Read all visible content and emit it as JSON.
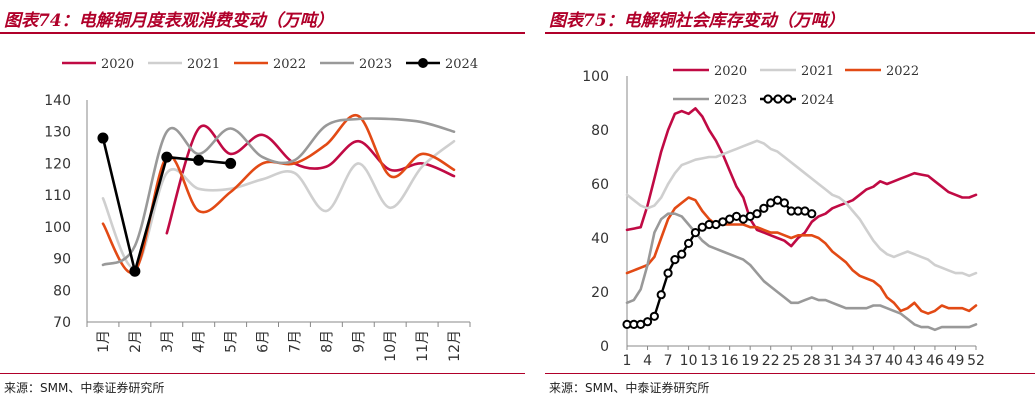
{
  "charts": [
    {
      "title": "图表74：电解铜月度表观消费变动（万吨）",
      "source": "来源：SMM、中泰证券研究所",
      "chart_data": {
        "type": "line",
        "categories": [
          "1月",
          "2月",
          "3月",
          "4月",
          "5月",
          "6月",
          "7月",
          "8月",
          "9月",
          "10月",
          "11月",
          "12月"
        ],
        "ylim": [
          70,
          140
        ],
        "yticks": [
          70,
          80,
          90,
          100,
          110,
          120,
          130,
          140
        ],
        "grid": false,
        "legend": "top",
        "series": [
          {
            "name": "2020",
            "color": "#c00a44",
            "values": [
              null,
              null,
              98,
              131,
              123,
              129,
              120,
              119,
              127,
              118,
              120,
              116
            ],
            "markers": false
          },
          {
            "name": "2021",
            "color": "#cfcfcf",
            "values": [
              109,
              87,
              117,
              112,
              112,
              115,
              117,
              105,
              120,
              106,
              119,
              127
            ],
            "markers": false
          },
          {
            "name": "2022",
            "color": "#e24a15",
            "values": [
              101,
              86,
              122,
              105,
              111,
              120,
              120,
              126,
              135,
              116,
              123,
              118
            ],
            "markers": false
          },
          {
            "name": "2023",
            "color": "#999999",
            "values": [
              88,
              94,
              130,
              123,
              131,
              122,
              121,
              132,
              134,
              134,
              133,
              130
            ],
            "markers": false
          },
          {
            "name": "2024",
            "color": "#000000",
            "values": [
              128,
              86,
              122,
              121,
              120,
              null,
              null,
              null,
              null,
              null,
              null,
              null
            ],
            "markers": true
          }
        ]
      }
    },
    {
      "title": "图表75：电解铜社会库存变动（万吨）",
      "source": "来源：SMM、中泰证券研究所",
      "chart_data": {
        "type": "line",
        "xticks": [
          1,
          4,
          7,
          10,
          13,
          16,
          19,
          22,
          25,
          28,
          31,
          34,
          37,
          40,
          43,
          46,
          49,
          52
        ],
        "xlim": [
          1,
          52
        ],
        "ylim": [
          0,
          100
        ],
        "yticks": [
          0,
          20,
          40,
          60,
          80,
          100
        ],
        "grid": false,
        "legend": "top",
        "series": [
          {
            "name": "2020",
            "color": "#c00a44",
            "markers": false,
            "x": [
              1,
              2,
              3,
              4,
              5,
              6,
              7,
              8,
              9,
              10,
              11,
              12,
              13,
              14,
              15,
              16,
              17,
              18,
              19,
              20,
              21,
              22,
              23,
              24,
              25,
              26,
              27,
              28,
              29,
              30,
              31,
              32,
              33,
              34,
              35,
              36,
              37,
              38,
              39,
              40,
              41,
              42,
              43,
              44,
              45,
              46,
              47,
              48,
              49,
              50,
              51,
              52
            ],
            "y": [
              43,
              43.5,
              44,
              52,
              62,
              72,
              80,
              86,
              87,
              86,
              88,
              85,
              80,
              76,
              71,
              65,
              59,
              55,
              47,
              43,
              42,
              41,
              40,
              39,
              37,
              40,
              42,
              46,
              48,
              49,
              51,
              52,
              53,
              54,
              56,
              58,
              59,
              61,
              60,
              61,
              62,
              63,
              64,
              63.5,
              63,
              61,
              59,
              57,
              56,
              55,
              55,
              56
            ]
          },
          {
            "name": "2021",
            "color": "#cfcfcf",
            "markers": false,
            "x": [
              1,
              2,
              3,
              4,
              5,
              6,
              7,
              8,
              9,
              10,
              11,
              12,
              13,
              14,
              15,
              16,
              17,
              18,
              19,
              20,
              21,
              22,
              23,
              24,
              25,
              26,
              27,
              28,
              29,
              30,
              31,
              32,
              33,
              34,
              35,
              36,
              37,
              38,
              39,
              40,
              41,
              42,
              43,
              44,
              45,
              46,
              47,
              48,
              49,
              50,
              51,
              52
            ],
            "y": [
              56,
              54,
              52,
              51,
              52,
              55,
              60,
              64,
              67,
              68,
              69,
              69.5,
              70,
              70,
              71,
              72,
              73,
              74,
              75,
              76,
              75,
              73,
              72,
              70,
              68,
              66,
              64,
              62,
              60,
              58,
              56,
              55,
              53,
              50,
              47,
              43,
              39,
              36,
              34,
              33,
              34,
              35,
              34,
              33,
              32,
              30,
              29,
              28,
              27,
              27,
              26,
              27
            ]
          },
          {
            "name": "2022",
            "color": "#e24a15",
            "markers": false,
            "x": [
              1,
              2,
              3,
              4,
              5,
              6,
              7,
              8,
              9,
              10,
              11,
              12,
              13,
              14,
              15,
              16,
              17,
              18,
              19,
              20,
              21,
              22,
              23,
              24,
              25,
              26,
              27,
              28,
              29,
              30,
              31,
              32,
              33,
              34,
              35,
              36,
              37,
              38,
              39,
              40,
              41,
              42,
              43,
              44,
              45,
              46,
              47,
              48,
              49,
              50,
              51,
              52
            ],
            "y": [
              27,
              28,
              29,
              30,
              33,
              40,
              47,
              51,
              53,
              55,
              54,
              50,
              47,
              45,
              45,
              45,
              45,
              45,
              44,
              44,
              43,
              42,
              42,
              41,
              40,
              41,
              41,
              41,
              40,
              38,
              35,
              33,
              31,
              28,
              26,
              25,
              24,
              22,
              18,
              16,
              13,
              14,
              16,
              13,
              12,
              13,
              15,
              14,
              14,
              14,
              13,
              15
            ]
          },
          {
            "name": "2023",
            "color": "#999999",
            "markers": false,
            "x": [
              1,
              2,
              3,
              4,
              5,
              6,
              7,
              8,
              9,
              10,
              11,
              12,
              13,
              14,
              15,
              16,
              17,
              18,
              19,
              20,
              21,
              22,
              23,
              24,
              25,
              26,
              27,
              28,
              29,
              30,
              31,
              32,
              33,
              34,
              35,
              36,
              37,
              38,
              39,
              40,
              41,
              42,
              43,
              44,
              45,
              46,
              47,
              48,
              49,
              50,
              51,
              52
            ],
            "y": [
              16,
              17,
              21,
              30,
              42,
              47,
              49,
              49,
              48,
              45,
              42,
              39,
              37,
              36,
              35,
              34,
              33,
              32,
              30,
              27,
              24,
              22,
              20,
              18,
              16,
              16,
              17,
              18,
              17,
              17,
              16,
              15,
              14,
              14,
              14,
              14,
              15,
              15,
              14,
              13,
              12,
              10,
              8,
              7,
              7,
              6,
              7,
              7,
              7,
              7,
              7,
              8
            ]
          },
          {
            "name": "2024",
            "color": "#000000",
            "markers": true,
            "x": [
              1,
              2,
              3,
              4,
              5,
              6,
              7,
              8,
              9,
              10,
              11,
              12,
              13,
              14,
              15,
              16,
              17,
              18,
              19,
              20,
              21,
              22,
              23,
              24,
              25,
              26,
              27,
              28
            ],
            "y": [
              8,
              8,
              8,
              9,
              11,
              19,
              27,
              32,
              34,
              38,
              42,
              44,
              45,
              45,
              46,
              47,
              48,
              47,
              48,
              49,
              51,
              53,
              54,
              53,
              50,
              50,
              50,
              49
            ]
          }
        ]
      }
    }
  ]
}
